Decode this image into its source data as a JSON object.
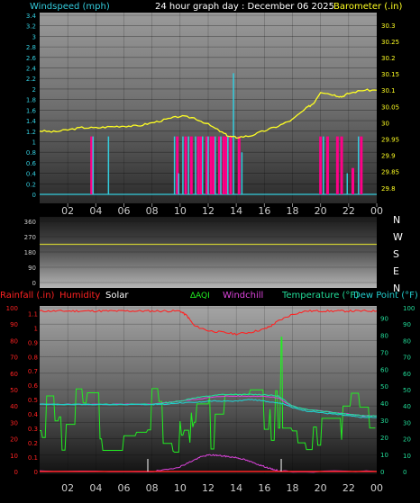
{
  "title": "24 hour graph day : December 06 2025",
  "top_left_label": "Windspeed (mph)",
  "top_right_label": "Barometer (.in)",
  "x_ticks": [
    "02",
    "04",
    "06",
    "08",
    "10",
    "12",
    "14",
    "16",
    "18",
    "20",
    "22",
    "00"
  ],
  "colors": {
    "wind": "#33ccdd",
    "gust": "#ff0088",
    "baro": "#ffff22",
    "direction": "#cccc33",
    "rain": "#ff2222",
    "humidity": "#ff2222",
    "solar": "#ffffff",
    "aqi": "#22ee22",
    "windchill": "#dd44dd",
    "temperature": "#22dd99",
    "dewpoint": "#22cccc"
  },
  "bottom_labels": {
    "rainfall": "Rainfall (.in)",
    "humidity": "Humidity",
    "solar": "Solar",
    "aqi": "AQI",
    "windchill": "Windchill",
    "temperature": "Temperature (°F)",
    "dewpoint": "Dew Point (°F)"
  },
  "compass": [
    "N",
    "W",
    "S",
    "E",
    "N"
  ],
  "chart_data": [
    {
      "type": "line",
      "name": "wind-barometer",
      "x_range": [
        0,
        24
      ],
      "y_left_ticks": [
        "0",
        "0.2",
        "0.4",
        "0.6",
        "0.8",
        "1",
        "1.2",
        "1.4",
        "1.6",
        "1.8",
        "2",
        "2.2",
        "2.4",
        "2.6",
        "2.8",
        "3",
        "3.2",
        "3.4"
      ],
      "y_left_range": [
        0,
        3.4
      ],
      "y_right_ticks": [
        "29.8",
        "29.85",
        "29.9",
        "29.95",
        "30",
        "30.05",
        "30.1",
        "30.15",
        "30.2",
        "30.25",
        "30.3"
      ],
      "y_right_range": [
        29.78,
        30.33
      ],
      "barometer": {
        "x": [
          0,
          1,
          2,
          3,
          4,
          5,
          6,
          7,
          8,
          9,
          10,
          11,
          12,
          13,
          13.5,
          14,
          15,
          16,
          17,
          18,
          19,
          19.5,
          20,
          21,
          21.5,
          22,
          23,
          24
        ],
        "y": [
          29.975,
          29.972,
          29.978,
          29.985,
          29.984,
          29.988,
          29.99,
          29.99,
          30.0,
          30.01,
          30.02,
          30.015,
          29.995,
          29.97,
          29.958,
          29.955,
          29.96,
          29.975,
          29.99,
          30.01,
          30.045,
          30.06,
          30.095,
          30.085,
          30.08,
          30.09,
          30.1,
          30.1
        ]
      },
      "wind_spikes": [
        {
          "x": 3.8,
          "v": 1.1
        },
        {
          "x": 4.9,
          "v": 1.1
        },
        {
          "x": 9.6,
          "v": 1.1
        },
        {
          "x": 9.9,
          "v": 0.4
        },
        {
          "x": 10.2,
          "v": 1.1
        },
        {
          "x": 10.6,
          "v": 1.1
        },
        {
          "x": 11.1,
          "v": 1.1
        },
        {
          "x": 11.6,
          "v": 1.1
        },
        {
          "x": 12.0,
          "v": 1.1
        },
        {
          "x": 12.5,
          "v": 1.1
        },
        {
          "x": 12.9,
          "v": 1.1
        },
        {
          "x": 13.4,
          "v": 1.1
        },
        {
          "x": 13.8,
          "v": 2.3
        },
        {
          "x": 14.4,
          "v": 0.8
        },
        {
          "x": 20.2,
          "v": 1.1
        },
        {
          "x": 21.9,
          "v": 0.4
        },
        {
          "x": 22.7,
          "v": 1.1
        }
      ],
      "gust_spikes": [
        {
          "x": 3.7,
          "v": 1.1
        },
        {
          "x": 9.8,
          "v": 1.1
        },
        {
          "x": 10.4,
          "v": 1.1
        },
        {
          "x": 10.8,
          "v": 1.1
        },
        {
          "x": 11.3,
          "v": 1.1
        },
        {
          "x": 11.5,
          "v": 1.1
        },
        {
          "x": 11.9,
          "v": 1.1
        },
        {
          "x": 12.2,
          "v": 1.1
        },
        {
          "x": 12.4,
          "v": 1.1
        },
        {
          "x": 12.8,
          "v": 1.1
        },
        {
          "x": 13.1,
          "v": 1.1
        },
        {
          "x": 13.3,
          "v": 1.1
        },
        {
          "x": 13.6,
          "v": 1.1
        },
        {
          "x": 14.2,
          "v": 1.1
        },
        {
          "x": 20.0,
          "v": 1.1
        },
        {
          "x": 20.5,
          "v": 1.1
        },
        {
          "x": 21.2,
          "v": 1.1
        },
        {
          "x": 21.5,
          "v": 1.1
        },
        {
          "x": 22.3,
          "v": 0.5
        },
        {
          "x": 22.9,
          "v": 1.1
        }
      ]
    },
    {
      "type": "line",
      "name": "wind-direction",
      "x_range": [
        0,
        24
      ],
      "y_ticks": [
        "0",
        "90",
        "180",
        "270",
        "360"
      ],
      "y_range": [
        0,
        360
      ],
      "direction_deg": 225
    },
    {
      "type": "line",
      "name": "temperature-humidity",
      "x_range": [
        0,
        24
      ],
      "y_left_ticks": [
        "0",
        "10",
        "20",
        "30",
        "40",
        "50",
        "60",
        "70",
        "80",
        "90",
        "100"
      ],
      "y_left_range": [
        0,
        100
      ],
      "rain_ticks": [
        "0",
        "0.1",
        "0.2",
        "0.3",
        "0.4",
        "0.5",
        "0.6",
        "0.7",
        "0.8",
        "0.9",
        "1",
        "1.1"
      ],
      "y_right_ticks": [
        "0",
        "10",
        "20",
        "30",
        "40",
        "50",
        "60",
        "70",
        "80",
        "90"
      ],
      "y_right_range": [
        0,
        100
      ],
      "y_right_outer_ticks": [
        "0",
        "10",
        "20",
        "30",
        "40",
        "50",
        "60",
        "70",
        "80",
        "90",
        "100"
      ],
      "humidity": {
        "x": [
          0,
          1,
          2,
          3,
          4,
          5,
          6,
          7,
          8,
          9,
          10,
          10.5,
          11,
          12,
          13,
          14,
          15,
          16,
          16.5,
          17,
          18,
          19,
          20,
          21,
          22,
          23,
          24
        ],
        "y": [
          98,
          98,
          98,
          98,
          98,
          98,
          98,
          98,
          98,
          98,
          98,
          95,
          89,
          86,
          85,
          84,
          85,
          87,
          89,
          92,
          96,
          98,
          98,
          98,
          98,
          98,
          98
        ]
      },
      "temperature": {
        "x": [
          0,
          2,
          4,
          6,
          8,
          9,
          10,
          11,
          12,
          13,
          14,
          15,
          16,
          17,
          17.5,
          18,
          19,
          20,
          21,
          22,
          23,
          24
        ],
        "y": [
          41,
          41,
          41,
          41,
          41,
          42,
          43,
          45,
          46,
          47,
          47,
          47,
          47,
          46,
          43,
          40,
          38,
          37,
          36,
          35,
          34,
          34
        ]
      },
      "dewpoint": {
        "x": [
          0,
          2,
          4,
          6,
          8,
          9,
          10,
          11,
          12,
          13,
          14,
          15,
          16,
          17,
          17.5,
          18,
          19,
          20,
          21,
          22,
          23,
          24
        ],
        "y": [
          41,
          41,
          41,
          41,
          41,
          41,
          42,
          42,
          43,
          43,
          43,
          44,
          43,
          42,
          41,
          39,
          37,
          36,
          35,
          34,
          33,
          33
        ]
      },
      "windchill": {
        "x": [
          0,
          2,
          4,
          6,
          8,
          9,
          10,
          11,
          12,
          13,
          14,
          15,
          16,
          17,
          17.5,
          18,
          19,
          20,
          21,
          22,
          23,
          24
        ],
        "y": [
          41,
          41,
          41,
          41,
          41,
          42,
          43,
          44,
          45,
          46,
          46,
          46,
          46,
          45,
          42,
          40,
          38,
          37,
          36,
          35,
          34,
          34
        ]
      },
      "solar": {
        "x": [
          0,
          8,
          9,
          10,
          10.5,
          11,
          11.5,
          12,
          12.5,
          13,
          13.5,
          14,
          14.5,
          15,
          15.5,
          16,
          16.5,
          17,
          18,
          24
        ],
        "y": [
          0,
          0,
          1,
          3,
          5,
          7,
          9,
          10,
          10,
          9.5,
          9,
          8.5,
          7.5,
          6,
          4.5,
          3,
          1.5,
          0.5,
          0,
          0
        ]
      },
      "aqi_seed": 7,
      "aqi_base": 25,
      "aqi_peak": {
        "x": 17.2,
        "y": 82
      }
    }
  ]
}
